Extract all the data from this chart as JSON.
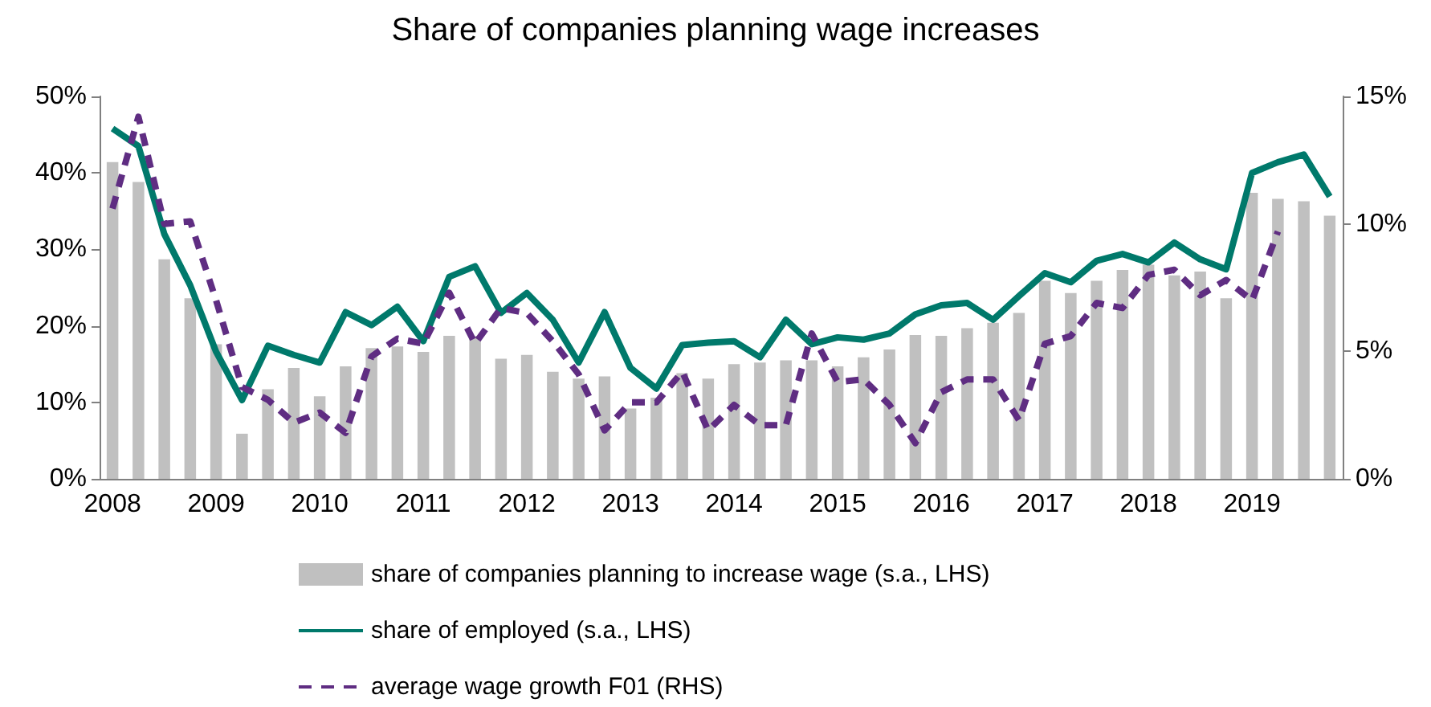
{
  "chart_data": {
    "type": "bar",
    "title": "Share of companies planning wage increases",
    "categories": [
      "2008",
      null,
      null,
      null,
      "2009",
      null,
      null,
      null,
      "2010",
      null,
      null,
      null,
      "2011",
      null,
      null,
      null,
      "2012",
      null,
      null,
      null,
      "2013",
      null,
      null,
      null,
      "2014",
      null,
      null,
      null,
      "2015",
      null,
      null,
      null,
      "2016",
      null,
      null,
      null,
      "2017",
      null,
      null,
      null,
      "2018",
      null,
      null,
      null,
      "2019",
      null,
      null,
      null
    ],
    "series": [
      {
        "name": "share of companies planning to increase wage (s.a., LHS)",
        "color": "#c0c0c0",
        "values": [
          41.4,
          38.8,
          28.7,
          23.6,
          17.6,
          5.9,
          11.7,
          14.5,
          10.8,
          14.7,
          17.1,
          17.3,
          16.6,
          18.7,
          18.7,
          15.7,
          16.2,
          14.0,
          13.1,
          13.4,
          9.2,
          10.6,
          13.8,
          13.1,
          15.0,
          15.2,
          15.5,
          15.5,
          14.7,
          15.9,
          16.9,
          18.8,
          18.7,
          19.7,
          20.4,
          21.7,
          25.9,
          24.3,
          25.9,
          27.3,
          28.0,
          26.6,
          27.1,
          23.6,
          37.4,
          36.6,
          36.3,
          34.4
        ]
      },
      {
        "name": "share of employed (s.a., LHS)",
        "type": "line",
        "line_style": "solid",
        "color": "#00796b",
        "values": [
          45.8,
          43.5,
          32.0,
          25.3,
          16.6,
          10.3,
          17.4,
          16.2,
          15.2,
          21.8,
          20.1,
          22.5,
          18.0,
          26.4,
          27.8,
          21.7,
          24.3,
          20.8,
          15.2,
          21.8,
          14.5,
          11.8,
          17.5,
          17.8,
          18.0,
          15.9,
          20.8,
          17.6,
          18.5,
          18.2,
          19.0,
          21.5,
          22.7,
          23.0,
          20.8,
          23.9,
          26.9,
          25.7,
          28.5,
          29.4,
          28.3,
          30.9,
          28.7,
          27.4,
          40.0,
          41.4,
          42.4,
          36.9
        ]
      },
      {
        "name": "average wage growth F01 (RHS)",
        "type": "line",
        "line_style": "dashed",
        "axis": "y2",
        "color": "#5f2d82",
        "values": [
          10.6,
          14.2,
          10.0,
          10.1,
          7.0,
          3.6,
          3.1,
          2.2,
          2.6,
          1.8,
          4.8,
          5.5,
          5.3,
          7.3,
          5.3,
          6.7,
          6.5,
          5.4,
          4.1,
          1.9,
          3.0,
          3.0,
          4.2,
          1.9,
          2.9,
          2.1,
          2.1,
          5.7,
          3.8,
          3.9,
          2.9,
          1.4,
          3.4,
          3.9,
          3.9,
          2.3,
          5.3,
          5.6,
          6.9,
          6.7,
          8.0,
          8.2,
          7.2,
          7.8,
          7.0,
          9.7,
          null,
          null
        ]
      }
    ],
    "ylim": [
      0,
      50
    ],
    "yticks": [
      {
        "value": 0,
        "label": "0%"
      },
      {
        "value": 10,
        "label": "10%"
      },
      {
        "value": 20,
        "label": "20%"
      },
      {
        "value": 30,
        "label": "30%"
      },
      {
        "value": 40,
        "label": "40%"
      },
      {
        "value": 50,
        "label": "50%"
      }
    ],
    "y2lim": [
      0,
      15
    ],
    "y2ticks": [
      {
        "value": 0,
        "label": "0%"
      },
      {
        "value": 5,
        "label": "5%"
      },
      {
        "value": 10,
        "label": "10%"
      },
      {
        "value": 15,
        "label": "15%"
      }
    ],
    "marker": "none",
    "grid": false,
    "legend": "bottom"
  }
}
